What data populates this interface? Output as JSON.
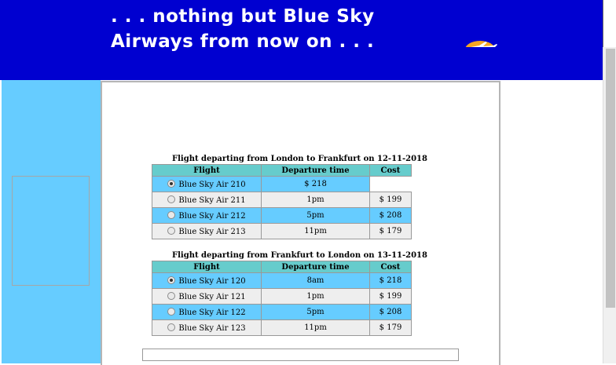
{
  "banner": {
    "tagline": ". . . nothing but Blue Sky Airways from now on . . ."
  },
  "outbound": {
    "caption": "Flight departing from London to Frankfurt on 12-11-2018",
    "headers": [
      "Flight",
      "Departure time",
      "Cost"
    ],
    "rows": [
      {
        "flight": "Blue Sky Air 210",
        "time": "$ 218",
        "cost": "",
        "selected": true
      },
      {
        "flight": "Blue Sky Air 211",
        "time": "1pm",
        "cost": "$ 199",
        "selected": false
      },
      {
        "flight": "Blue Sky Air 212",
        "time": "5pm",
        "cost": "$ 208",
        "selected": false
      },
      {
        "flight": "Blue Sky Air 213",
        "time": "11pm",
        "cost": "$ 179",
        "selected": false
      }
    ]
  },
  "return": {
    "caption": "Flight departing from Frankfurt to London on 13-11-2018",
    "headers": [
      "Flight",
      "Departure time",
      "Cost"
    ],
    "rows": [
      {
        "flight": "Blue Sky Air 120",
        "time": "8am",
        "cost": "$ 218",
        "selected": true
      },
      {
        "flight": "Blue Sky Air 121",
        "time": "1pm",
        "cost": "$ 199",
        "selected": false
      },
      {
        "flight": "Blue Sky Air 122",
        "time": "5pm",
        "cost": "$ 208",
        "selected": false
      },
      {
        "flight": "Blue Sky Air 123",
        "time": "11pm",
        "cost": "$ 179",
        "selected": false
      }
    ]
  },
  "colors": {
    "banner": "#0000d0",
    "sidebar": "#66ccff",
    "header_cell": "#66cccc",
    "row_alt": "#eeeeee"
  }
}
